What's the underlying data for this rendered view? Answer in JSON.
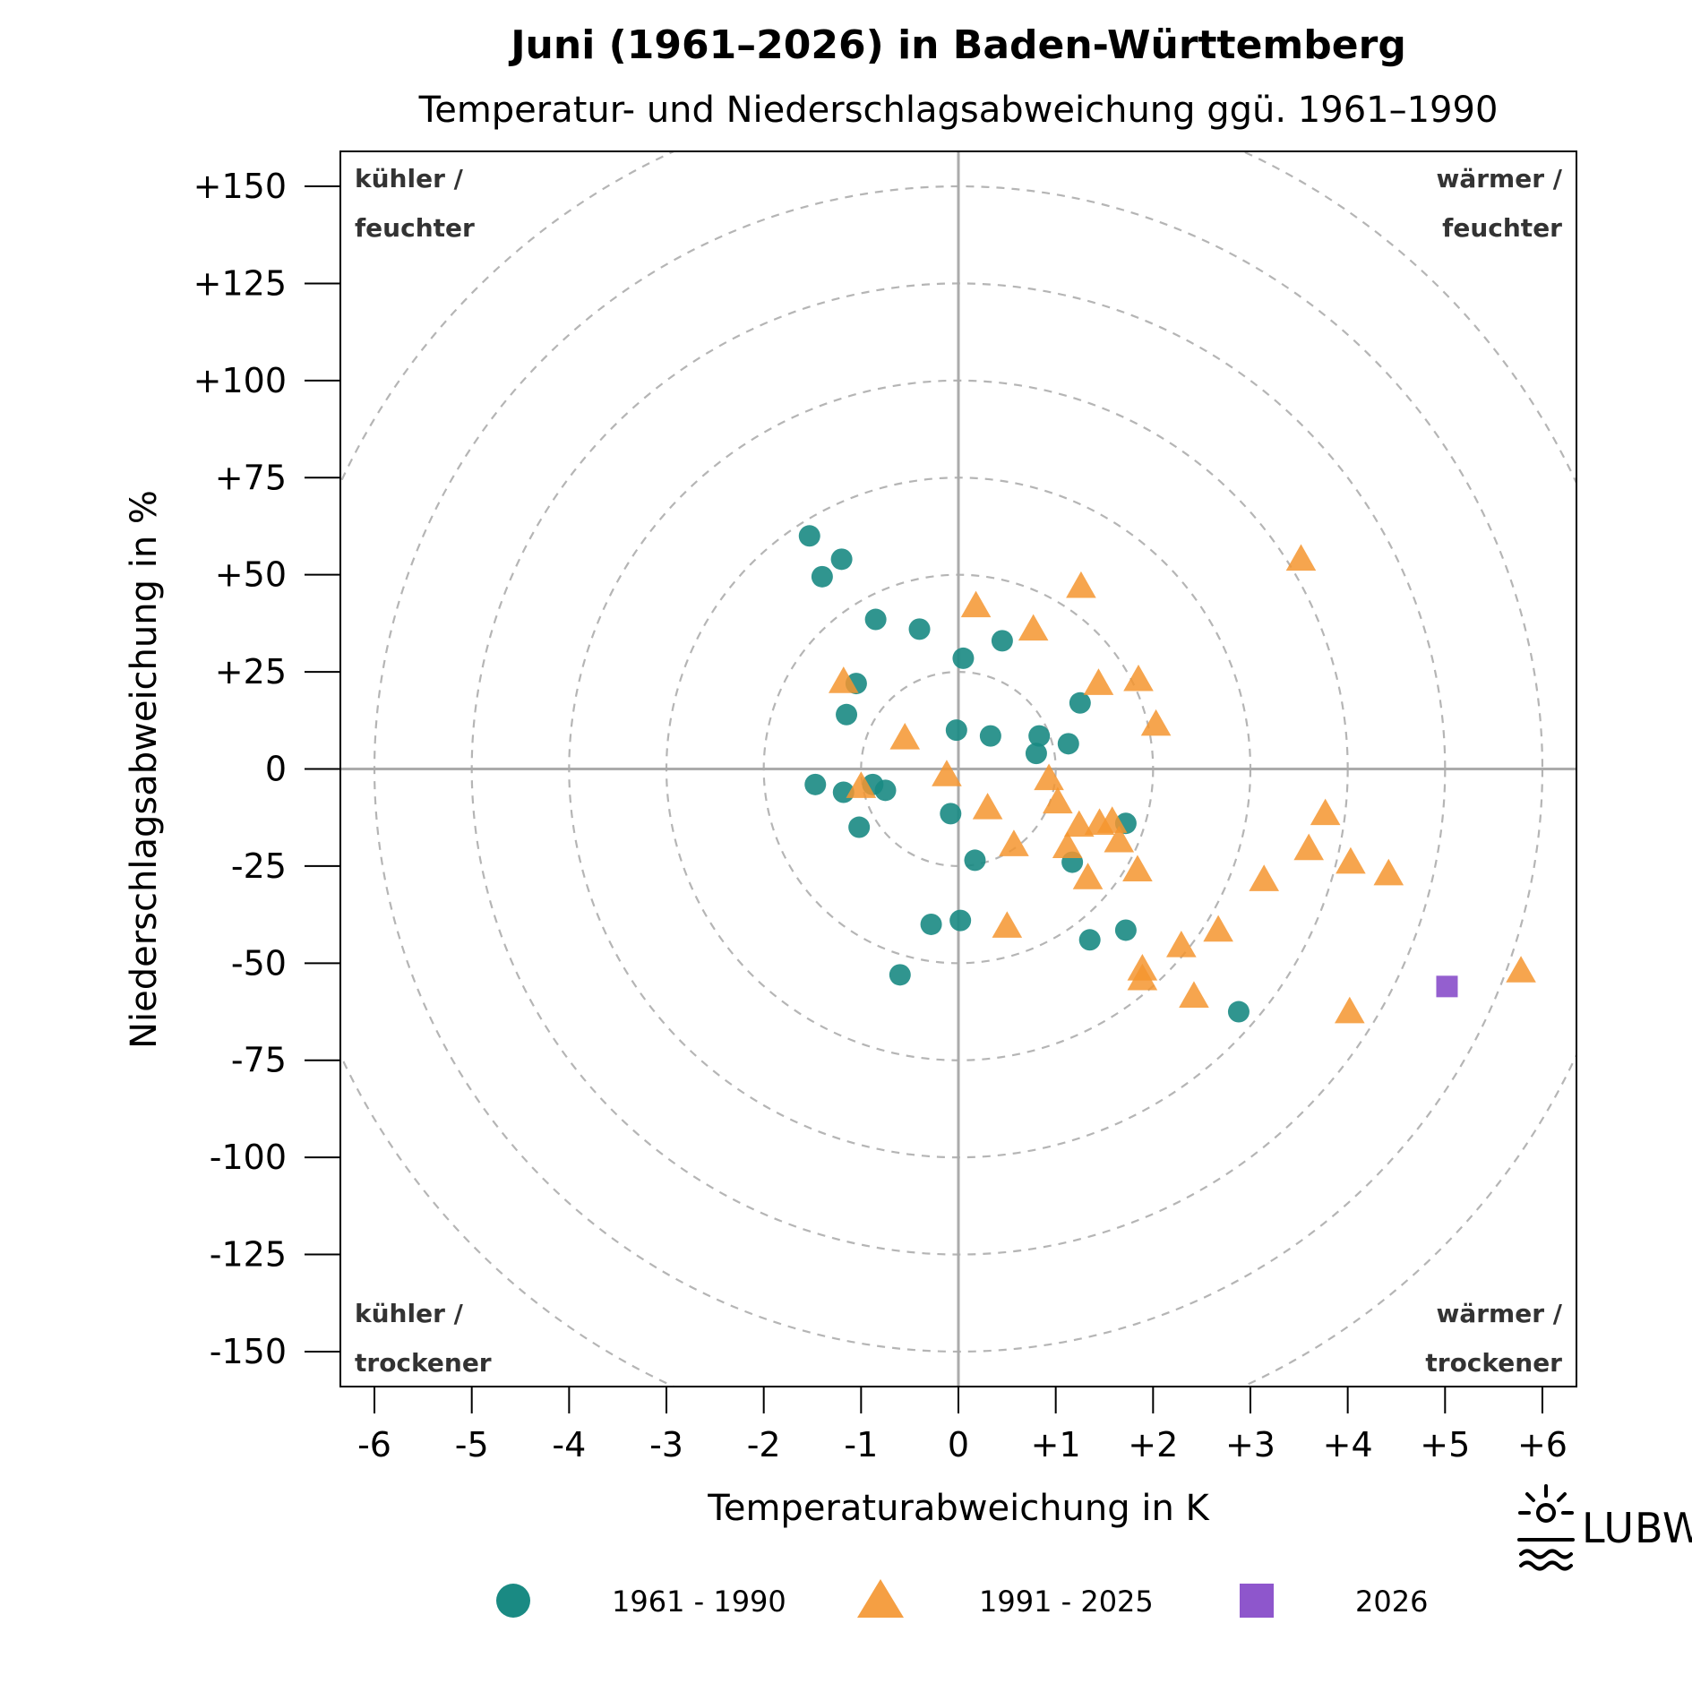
{
  "chart_data": {
    "type": "scatter",
    "title": "Juni (1961–2026) in Baden-Württemberg",
    "subtitle": "Temperatur- und Niederschlagsabweichung ggü. 1961–1990",
    "xlabel": "Temperaturabweichung in K",
    "ylabel": "Niederschlagsabweichung in %",
    "xlim": [
      -6.35,
      6.35
    ],
    "ylim": [
      -159,
      159
    ],
    "x_ticks": [
      -6,
      -5,
      -4,
      -3,
      -2,
      -1,
      0,
      1,
      2,
      3,
      4,
      5,
      6
    ],
    "x_tick_labels": [
      "-6",
      "-5",
      "-4",
      "-3",
      "-2",
      "-1",
      "0",
      "+1",
      "+2",
      "+3",
      "+4",
      "+5",
      "+6"
    ],
    "y_ticks": [
      150,
      125,
      100,
      75,
      50,
      25,
      0,
      -25,
      -50,
      -75,
      -100,
      -125,
      -150
    ],
    "y_tick_labels": [
      "+150",
      "+125",
      "+100",
      "+75",
      "+50",
      "+25",
      "0",
      "-25",
      "-50",
      "-75",
      "-100",
      "-125",
      "-150"
    ],
    "grid": "concentric dashed circles, radius step 1 K / 25 %",
    "circle_radii": [
      1,
      2,
      3,
      4,
      5,
      6,
      7
    ],
    "quadrant_labels": {
      "top_left": [
        "kühler /",
        "feuchter"
      ],
      "top_right": [
        "wärmer /",
        "feuchter"
      ],
      "bottom_left": [
        "kühler /",
        "trockener"
      ],
      "bottom_right": [
        "wärmer /",
        "trockener"
      ]
    },
    "legend_position": "bottom",
    "series": [
      {
        "name": "1961 - 1990",
        "marker": "circle",
        "color": "#1a8a83",
        "points": [
          [
            -1.53,
            60
          ],
          [
            -1.2,
            54
          ],
          [
            -1.4,
            49.5
          ],
          [
            -0.85,
            38.5
          ],
          [
            -0.4,
            36
          ],
          [
            0.45,
            33
          ],
          [
            0.05,
            28.5
          ],
          [
            -1.05,
            22
          ],
          [
            1.25,
            17
          ],
          [
            -1.15,
            14
          ],
          [
            -0.02,
            10
          ],
          [
            0.33,
            8.5
          ],
          [
            0.83,
            8.5
          ],
          [
            1.13,
            6.5
          ],
          [
            0.8,
            4
          ],
          [
            -1.47,
            -4
          ],
          [
            -0.88,
            -4
          ],
          [
            -0.75,
            -5.5
          ],
          [
            -1.18,
            -6
          ],
          [
            -0.08,
            -11.5
          ],
          [
            -1.02,
            -15
          ],
          [
            1.72,
            -14
          ],
          [
            0.17,
            -23.5
          ],
          [
            1.17,
            -24
          ],
          [
            -0.28,
            -40
          ],
          [
            0.02,
            -39
          ],
          [
            1.72,
            -41.5
          ],
          [
            1.35,
            -44
          ],
          [
            -0.6,
            -53
          ],
          [
            2.88,
            -62.5
          ]
        ]
      },
      {
        "name": "1991 - 2025",
        "marker": "triangle",
        "color": "#f4952f",
        "points": [
          [
            3.52,
            54
          ],
          [
            1.26,
            47
          ],
          [
            0.18,
            42
          ],
          [
            0.77,
            36
          ],
          [
            1.44,
            22
          ],
          [
            1.85,
            23
          ],
          [
            -1.18,
            22.5
          ],
          [
            2.03,
            11.5
          ],
          [
            -0.55,
            8
          ],
          [
            -0.12,
            -1.5
          ],
          [
            0.93,
            -2.5
          ],
          [
            -1.0,
            -4.5
          ],
          [
            1.02,
            -8.5
          ],
          [
            0.3,
            -10
          ],
          [
            3.77,
            -11.5
          ],
          [
            1.24,
            -14.5
          ],
          [
            1.45,
            -14
          ],
          [
            1.58,
            -13.5
          ],
          [
            1.65,
            -18.5
          ],
          [
            0.57,
            -19.5
          ],
          [
            1.12,
            -20
          ],
          [
            3.6,
            -20.5
          ],
          [
            4.03,
            -24
          ],
          [
            4.42,
            -27
          ],
          [
            1.84,
            -26
          ],
          [
            1.33,
            -28
          ],
          [
            3.14,
            -28.5
          ],
          [
            0.5,
            -40.5
          ],
          [
            2.67,
            -41.5
          ],
          [
            2.29,
            -45.5
          ],
          [
            1.89,
            -51.5
          ],
          [
            1.89,
            -54
          ],
          [
            5.78,
            -52
          ],
          [
            2.42,
            -58.5
          ],
          [
            4.02,
            -62.5
          ]
        ]
      },
      {
        "name": "2026",
        "marker": "square",
        "color": "#8e56cc",
        "points": [
          [
            5.02,
            -56
          ]
        ]
      }
    ]
  },
  "logo": {
    "text": "LUBW"
  }
}
